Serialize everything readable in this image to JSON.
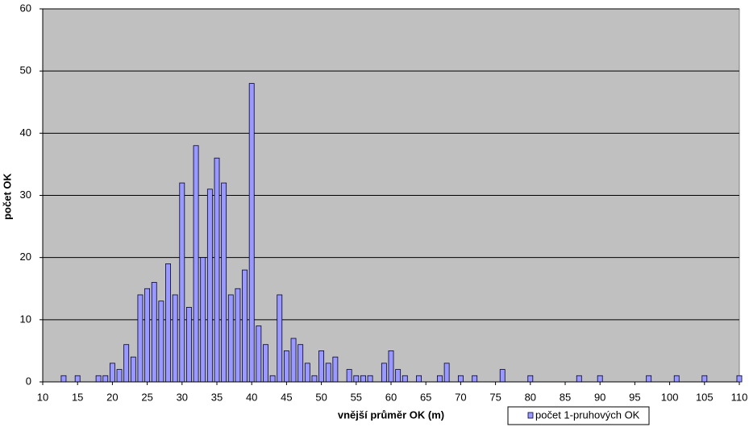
{
  "chart_data": {
    "type": "bar",
    "x_label": "vnější průměr OK (m)",
    "y_label": "počet OK",
    "series": [
      {
        "name": "počet 1-pruhových OK",
        "color": "#9999ff",
        "x": [
          13,
          15,
          18,
          19,
          20,
          21,
          22,
          23,
          24,
          25,
          26,
          27,
          28,
          29,
          30,
          31,
          32,
          33,
          34,
          35,
          36,
          37,
          38,
          39,
          40,
          41,
          42,
          43,
          44,
          45,
          46,
          47,
          48,
          49,
          50,
          51,
          52,
          54,
          55,
          56,
          57,
          59,
          60,
          61,
          62,
          64,
          67,
          68,
          70,
          72,
          76,
          80,
          87,
          90,
          97,
          101,
          105,
          110
        ],
        "values": [
          1,
          1,
          1,
          1,
          3,
          2,
          6,
          4,
          14,
          15,
          16,
          13,
          19,
          14,
          32,
          12,
          38,
          20,
          31,
          36,
          32,
          14,
          15,
          18,
          48,
          9,
          6,
          1,
          14,
          5,
          7,
          6,
          3,
          1,
          5,
          3,
          4,
          2,
          1,
          1,
          1,
          3,
          5,
          2,
          1,
          1,
          1,
          3,
          1,
          1,
          2,
          1,
          1,
          1,
          1,
          1,
          1,
          1
        ]
      }
    ],
    "xlim": [
      10,
      110
    ],
    "xticks": [
      10,
      15,
      20,
      25,
      30,
      35,
      40,
      45,
      50,
      55,
      60,
      65,
      70,
      75,
      80,
      85,
      90,
      95,
      100,
      105,
      110
    ],
    "ylim": [
      0,
      60
    ],
    "yticks": [
      0,
      10,
      20,
      30,
      40,
      50,
      60
    ],
    "grid": true,
    "legend": "bottom"
  }
}
